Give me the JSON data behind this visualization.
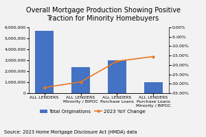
{
  "title": "Overall Mortgage Production Showing Positive\nTraction for Minority Homebuyers",
  "categories": [
    "ALL LENDERS",
    "ALL LENDERS\nMinority / BIPOC",
    "ALL LENDERS\nPurchase Loans",
    "ALL LENDERS\nPurchase Loans\nMinority / BIPOC"
  ],
  "bar_values": [
    5700000,
    2400000,
    3000000,
    1000000
  ],
  "bar_color": "#4472C4",
  "line_values": [
    -0.32,
    -0.29,
    -0.18,
    -0.155
  ],
  "line_color": "#E87722",
  "ylim_left": [
    0,
    6000000
  ],
  "ylim_right": [
    -0.35,
    0.0
  ],
  "yticks_left": [
    0,
    1000000,
    2000000,
    3000000,
    4000000,
    5000000,
    6000000
  ],
  "yticks_right": [
    0.0,
    -0.05,
    -0.1,
    -0.15,
    -0.2,
    -0.25,
    -0.3,
    -0.35
  ],
  "legend_bar": "Total Originations",
  "legend_line": "2023 YoY Change",
  "source_text": "Source: 2023 Home Mortgage Disclosure Act (HMDA) data",
  "background_color": "#f2f2f2",
  "title_fontsize": 7.0,
  "tick_fontsize": 4.5,
  "label_fontsize": 5.0,
  "source_fontsize": 4.8
}
